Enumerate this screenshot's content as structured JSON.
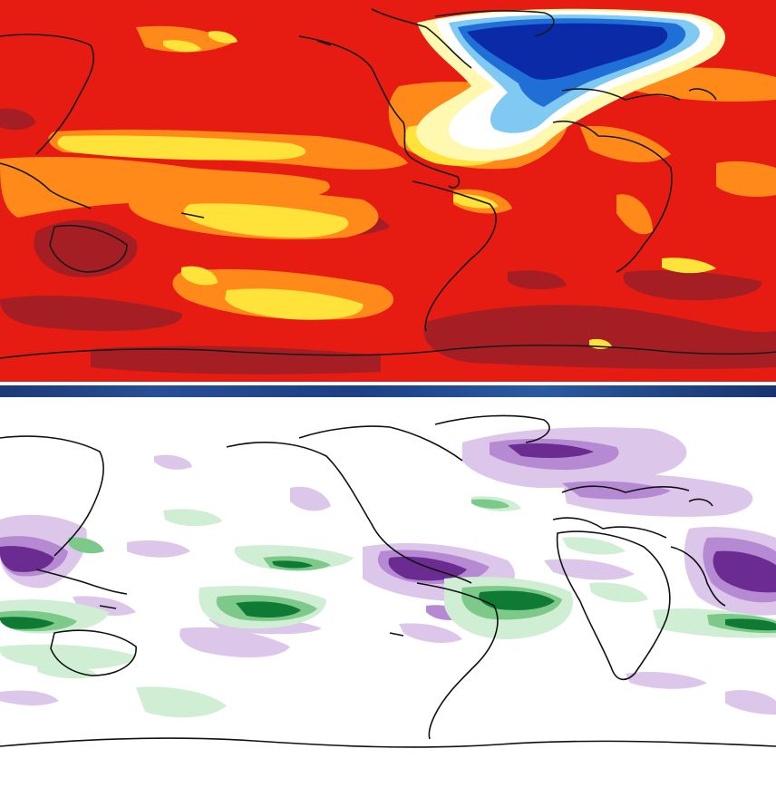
{
  "figure": {
    "panels": [
      {
        "id": "temperature-anomaly",
        "projection": "equirectangular",
        "colormap": "red-orange-yellow-white-blue",
        "colors": {
          "background": "#e61c12",
          "dark_red": "#a51e24",
          "orange": "#ff8a1a",
          "yellow": "#ffe23a",
          "pale": "#fff8b0",
          "white": "#ffffff",
          "light_blue": "#7fc9f2",
          "blue": "#1f6fd6",
          "dark_blue": "#0a2aa8",
          "coastline": "#1a1a1a"
        }
      },
      {
        "id": "precipitation-anomaly",
        "projection": "equirectangular",
        "colormap": "purple-white-green",
        "colors": {
          "background": "#ffffff",
          "light_purple": "#dcc6ea",
          "mid_purple": "#b58ad2",
          "dark_purple": "#6a2c91",
          "light_green": "#cfeed4",
          "mid_green": "#7cc98a",
          "dark_green": "#0e7a34",
          "coastline": "#111111"
        }
      }
    ],
    "divider_color": "#1f4690"
  }
}
